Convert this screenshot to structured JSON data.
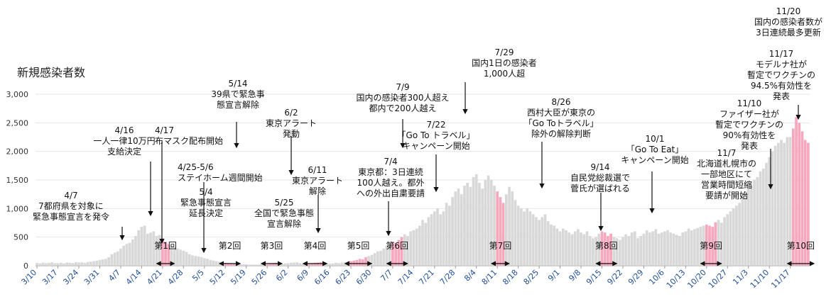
{
  "chart_data": {
    "type": "bar",
    "ylabel": "新規感染者数",
    "ylim": [
      0,
      3000
    ],
    "y_ticks": [
      "0",
      "500",
      "1,000",
      "1,500",
      "2,000",
      "2,500",
      "3,000"
    ],
    "x_ticks": [
      "3/10",
      "3/17",
      "3/24",
      "3/31",
      "4/7",
      "4/14",
      "4/21",
      "4/28",
      "5/5",
      "5/12",
      "5/19",
      "5/26",
      "6/2",
      "6/9",
      "6/16",
      "6/23",
      "6/30",
      "7/7",
      "7/14",
      "7/21",
      "7/28",
      "8/4",
      "8/11",
      "8/18",
      "8/25",
      "9/1",
      "9/8",
      "9/15",
      "9/22",
      "9/29",
      "10/6",
      "10/13",
      "10/20",
      "10/27",
      "11/3",
      "11/10",
      "11/17"
    ],
    "highlight_color": "#f7a8bd",
    "bar_color": "#d8d8d8",
    "week_values": [
      [
        50,
        40,
        55,
        45,
        50,
        60,
        45
      ],
      [
        45,
        50,
        40,
        55,
        50,
        45,
        60
      ],
      [
        55,
        60,
        50,
        65,
        70,
        80,
        90
      ],
      [
        100,
        110,
        120,
        150,
        200,
        230,
        250
      ],
      [
        300,
        350,
        380,
        400,
        460,
        520,
        620
      ],
      [
        680,
        700,
        560,
        580,
        600,
        520,
        540
      ],
      [
        480,
        420,
        380,
        350,
        330,
        300,
        280
      ],
      [
        260,
        240,
        200,
        180,
        170,
        160,
        150
      ],
      [
        130,
        120,
        100,
        90,
        80,
        70,
        60
      ],
      [
        50,
        45,
        40,
        35,
        30,
        30,
        25
      ],
      [
        25,
        20,
        20,
        20,
        18,
        25,
        20
      ],
      [
        25,
        30,
        35,
        50,
        40,
        35,
        40
      ],
      [
        45,
        50,
        55,
        60,
        45,
        40,
        35
      ],
      [
        40,
        45,
        50,
        55,
        60,
        50,
        45
      ],
      [
        35,
        40,
        50,
        45,
        55,
        60,
        70
      ],
      [
        80,
        90,
        100,
        120,
        110,
        150,
        170
      ],
      [
        190,
        220,
        250,
        260,
        300,
        350,
        380
      ],
      [
        420,
        400,
        450,
        500,
        550,
        520,
        600
      ],
      [
        620,
        650,
        700,
        800,
        750,
        850,
        900
      ],
      [
        950,
        1000,
        900,
        950,
        1100,
        1050,
        1200
      ],
      [
        1300,
        1350,
        1250,
        1400,
        1450,
        1380,
        1550
      ],
      [
        1600,
        1450,
        1350,
        1500,
        1580,
        1500,
        1400
      ],
      [
        1300,
        1200,
        1100,
        1250,
        1380,
        1300,
        1150
      ],
      [
        1050,
        1000,
        950,
        1000,
        950,
        900,
        850
      ],
      [
        800,
        850,
        900,
        780,
        720,
        700,
        650
      ],
      [
        600,
        650,
        620,
        580,
        550,
        600,
        640
      ],
      [
        580,
        550,
        600,
        520,
        480,
        500,
        560
      ],
      [
        600,
        580,
        520,
        560,
        500,
        480,
        450
      ],
      [
        500,
        550,
        520,
        580,
        600,
        480,
        520
      ],
      [
        560,
        620,
        580,
        600,
        640,
        560,
        580
      ],
      [
        600,
        620,
        580,
        560,
        540,
        520,
        580
      ],
      [
        600,
        650,
        620,
        640,
        660,
        680,
        700
      ],
      [
        720,
        700,
        680,
        760,
        800,
        750,
        850
      ],
      [
        900,
        950,
        1000,
        1050,
        1100,
        1200,
        1300
      ],
      [
        1350,
        1400,
        1500,
        1550,
        1650,
        1700,
        1800
      ],
      [
        1900,
        2000,
        2100,
        2150,
        2200,
        2150,
        2250
      ],
      [
        2250,
        2400,
        2600,
        2500,
        2350,
        2200,
        2150
      ]
    ],
    "highlights": [
      {
        "start": 42,
        "end": 44,
        "label": "第1回"
      },
      {
        "start": 63,
        "end": 66,
        "label": "第2回"
      },
      {
        "start": 77,
        "end": 80,
        "label": "第3回"
      },
      {
        "start": 91,
        "end": 95,
        "label": "第4回"
      },
      {
        "start": 105,
        "end": 110,
        "label": "第5回"
      },
      {
        "start": 119,
        "end": 122,
        "label": "第6回"
      },
      {
        "start": 154,
        "end": 156,
        "label": "第7回"
      },
      {
        "start": 189,
        "end": 192,
        "label": "第8回"
      },
      {
        "start": 224,
        "end": 227,
        "label": "第9回"
      },
      {
        "start": 253,
        "end": 258,
        "label": "第10回"
      }
    ],
    "annotations": [
      {
        "date": "4/7",
        "text": [
          "7都府県を対象に",
          "緊急事態宣言を発令"
        ]
      },
      {
        "date": "4/16",
        "text": [
          "一人一律10万円",
          "支給決定"
        ]
      },
      {
        "date": "4/17",
        "text": [
          "布マスク配布開始"
        ]
      },
      {
        "date": "4/25-5/6",
        "text": [
          "ステイホーム週間開始"
        ]
      },
      {
        "date": "5/4",
        "text": [
          "緊急事態宣言",
          "延長決定"
        ]
      },
      {
        "date": "5/14",
        "text": [
          "39県で緊急事",
          "態宣言解除"
        ]
      },
      {
        "date": "5/25",
        "text": [
          "全国で緊急事態",
          "宣言解除"
        ]
      },
      {
        "date": "6/2",
        "text": [
          "東京アラート",
          "発動"
        ]
      },
      {
        "date": "6/11",
        "text": [
          "東京アラート",
          "解除"
        ]
      },
      {
        "date": "7/4",
        "text": [
          "東京都：3日連続",
          "100人越え。都外",
          "への外出自粛要請"
        ]
      },
      {
        "date": "7/9",
        "text": [
          "国内の感染者300人超え",
          "都内で200人越え"
        ]
      },
      {
        "date": "7/22",
        "text": [
          "「Go To トラベル」",
          "キャンペーン開始"
        ]
      },
      {
        "date": "7/29",
        "text": [
          "国内1日の感染者",
          "1,000人超"
        ]
      },
      {
        "date": "8/26",
        "text": [
          "西村大臣が東京の",
          "「Go Toトラベル」",
          "除外の解除判断"
        ]
      },
      {
        "date": "9/14",
        "text": [
          "自民党総裁選で",
          "菅氏が選ばれる"
        ]
      },
      {
        "date": "10/1",
        "text": [
          "「Go To Eat」",
          "キャンペーン開始"
        ]
      },
      {
        "date": "11/7",
        "text": [
          "北海道札幌市の",
          "一部地区にて",
          "営業時間短縮",
          "要請が開始"
        ]
      },
      {
        "date": "11/10",
        "text": [
          "ファイザー社が",
          "暫定でワクチンの",
          "90%有効性を",
          "発表"
        ]
      },
      {
        "date": "11/17",
        "text": [
          "モデルナ社が",
          "暫定でワクチンの",
          "94.5%有効性を",
          "発表"
        ]
      },
      {
        "date": "11/20",
        "text": [
          "国内の感染者数が",
          "3日連続最多更新"
        ]
      }
    ]
  }
}
